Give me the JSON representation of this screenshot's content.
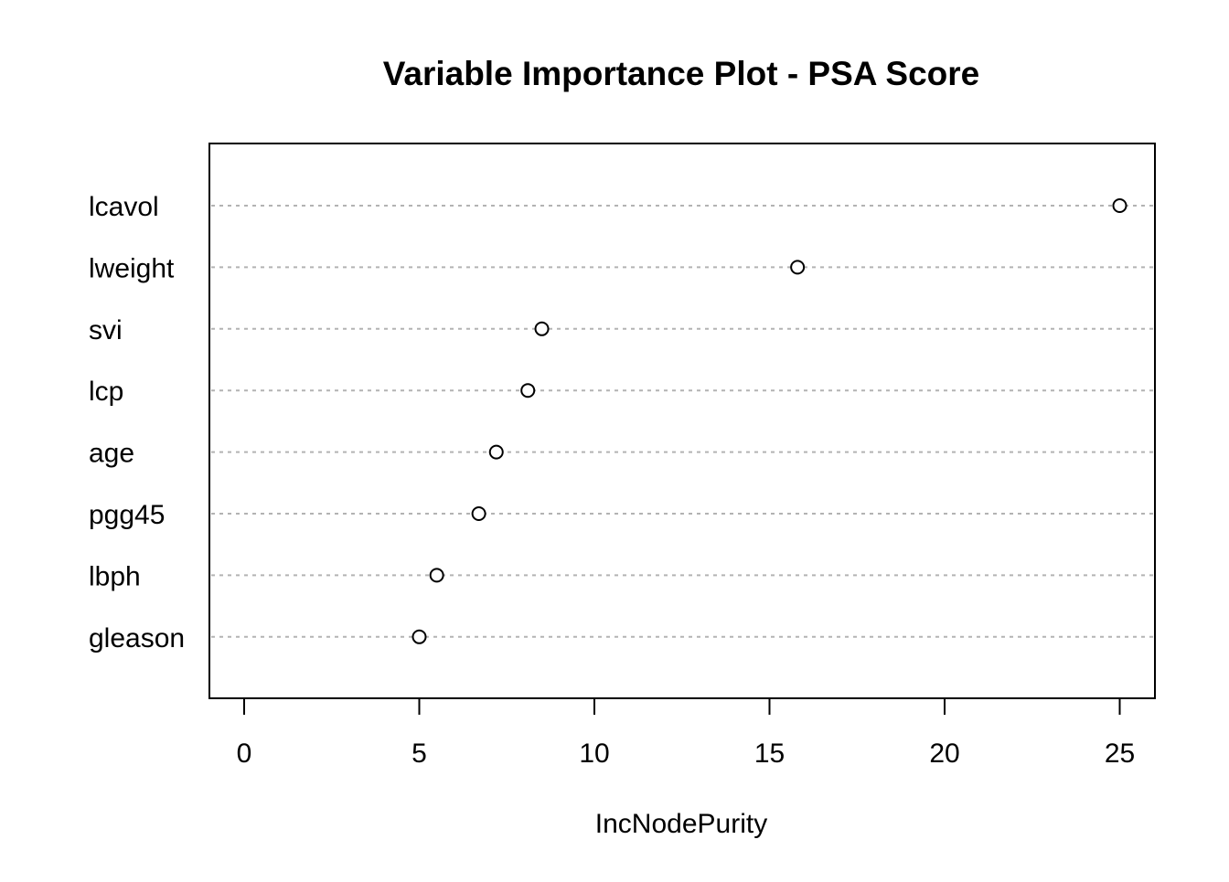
{
  "chart_data": {
    "type": "scatter",
    "title": "Variable Importance Plot - PSA Score",
    "xlabel": "IncNodePurity",
    "ylabel": "",
    "xlim": [
      -1,
      26
    ],
    "xticks": [
      "0",
      "5",
      "10",
      "15",
      "20",
      "25"
    ],
    "xtick_values": [
      0,
      5,
      10,
      15,
      20,
      25
    ],
    "grid": "dotted horizontal lines per variable",
    "legend": "none",
    "marker": "open circle",
    "categories": [
      "lcavol",
      "lweight",
      "svi",
      "lcp",
      "age",
      "pgg45",
      "lbph",
      "gleason"
    ],
    "values": [
      25.0,
      15.8,
      8.5,
      8.1,
      7.2,
      6.7,
      5.5,
      5.0
    ]
  }
}
